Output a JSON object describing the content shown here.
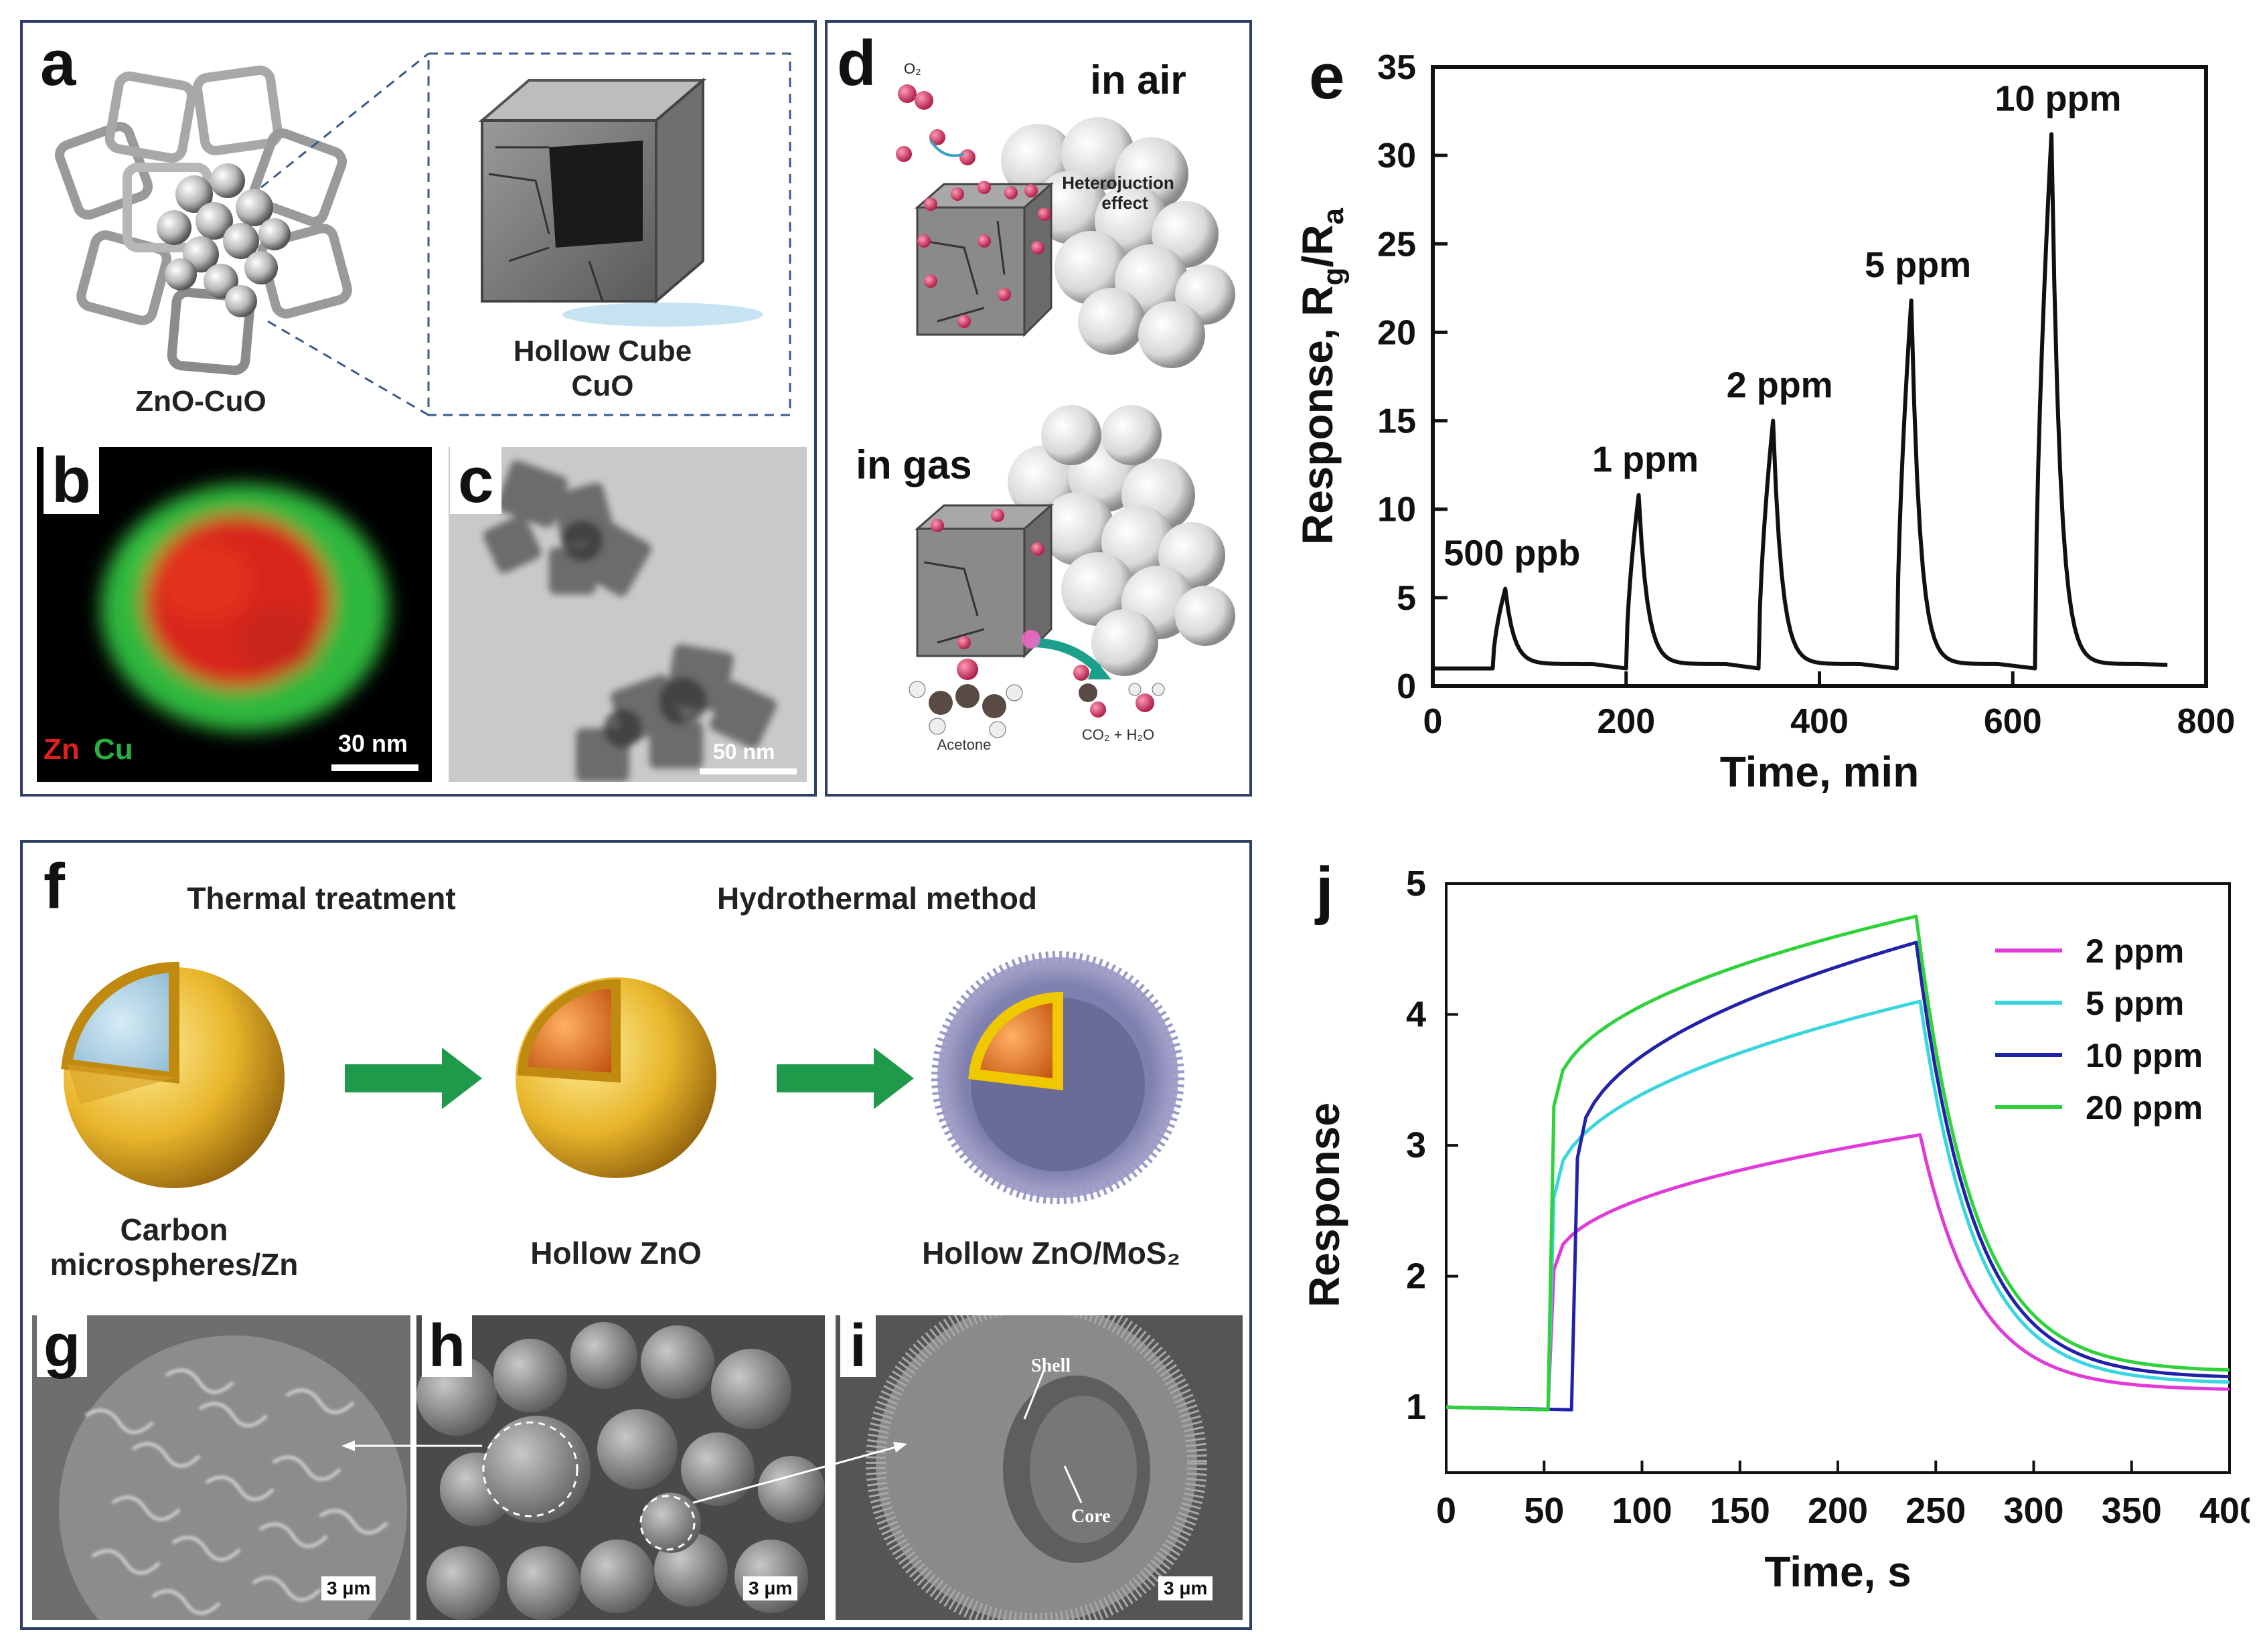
{
  "panel_letters": {
    "a": "a",
    "b": "b",
    "c": "c",
    "d": "d",
    "e": "e",
    "f": "f",
    "g": "g",
    "h": "h",
    "i": "i",
    "j": "j"
  },
  "panel_a": {
    "left_label": "ZnO-CuO",
    "right_label_line1": "Hollow Cube",
    "right_label_line2": "CuO"
  },
  "panel_b": {
    "legend_zn": "Zn",
    "legend_cu": "Cu",
    "scale": "30 nm",
    "zn_color": "#e0201a",
    "cu_color": "#29b040"
  },
  "panel_c": {
    "scale": "50 nm"
  },
  "panel_d": {
    "in_air": "in air",
    "in_gas": "in gas",
    "o2": "O₂",
    "heterojunction_line1": "Heterojuction",
    "heterojunction_line2": "effect",
    "acetone": "Acetone",
    "products": "CO₂ + H₂O"
  },
  "panel_f": {
    "step1": "Thermal treatment",
    "step2": "Hydrothermal method",
    "sphere1_line1": "Carbon",
    "sphere1_line2": "microspheres/Zn",
    "sphere2": "Hollow ZnO",
    "sphere3": "Hollow ZnO/MoS₂",
    "arrow_color": "#1e9a4a"
  },
  "panel_g": {
    "scale": "3 μm"
  },
  "panel_h": {
    "scale": "3 μm"
  },
  "panel_i": {
    "scale": "3 μm",
    "shell": "Shell",
    "core": "Core"
  },
  "chart_data": [
    {
      "id": "e",
      "type": "line",
      "title": "",
      "xlabel": "Time, min",
      "ylabel": "Response, Rg/Ra",
      "ylabel_main": "Response, R",
      "ylabel_sub1": "g",
      "ylabel_mid": "/R",
      "ylabel_sub2": "a",
      "xlim": [
        0,
        800
      ],
      "ylim": [
        0,
        35
      ],
      "xticks": [
        0,
        200,
        400,
        600,
        800
      ],
      "yticks": [
        0,
        5,
        10,
        15,
        20,
        25,
        30,
        35
      ],
      "peaks": [
        {
          "label": "500 ppb",
          "start": 62,
          "peak": 75,
          "value": 5.5
        },
        {
          "label": "1 ppm",
          "start": 200,
          "peak": 213,
          "value": 10.8
        },
        {
          "label": "2 ppm",
          "start": 337,
          "peak": 352,
          "value": 15.0
        },
        {
          "label": "5 ppm",
          "start": 480,
          "peak": 495,
          "value": 21.8
        },
        {
          "label": "10 ppm",
          "start": 623,
          "peak": 640,
          "value": 31.2
        }
      ],
      "baseline": 1.0,
      "end_time": 760
    },
    {
      "id": "j",
      "type": "line",
      "xlabel": "Time, s",
      "ylabel": "Response",
      "xlim": [
        0,
        400
      ],
      "ylim": [
        0.5,
        5
      ],
      "xticks": [
        0,
        50,
        100,
        150,
        200,
        250,
        300,
        350,
        400
      ],
      "yticks": [
        1,
        2,
        3,
        4,
        5
      ],
      "series": [
        {
          "name": "2 ppm",
          "color": "#e03ad8",
          "start": 52,
          "off": 242,
          "jump": 2.05,
          "peak": 3.08,
          "end": 1.13
        },
        {
          "name": "5 ppm",
          "color": "#3ad6e0",
          "start": 52,
          "off": 242,
          "jump": 2.6,
          "peak": 4.1,
          "end": 1.18
        },
        {
          "name": "10 ppm",
          "color": "#2222a8",
          "start": 64,
          "off": 240,
          "jump": 2.9,
          "peak": 4.55,
          "end": 1.22
        },
        {
          "name": "20 ppm",
          "color": "#2fd23a",
          "start": 52,
          "off": 240,
          "jump": 3.3,
          "peak": 4.75,
          "end": 1.27
        }
      ]
    }
  ]
}
